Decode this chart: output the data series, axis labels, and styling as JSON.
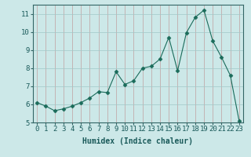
{
  "x": [
    0,
    1,
    2,
    3,
    4,
    5,
    6,
    7,
    8,
    9,
    10,
    11,
    12,
    13,
    14,
    15,
    16,
    17,
    18,
    19,
    20,
    21,
    22,
    23
  ],
  "y": [
    6.1,
    5.9,
    5.65,
    5.75,
    5.9,
    6.1,
    6.35,
    6.7,
    6.65,
    7.8,
    7.1,
    7.3,
    8.0,
    8.1,
    8.5,
    9.7,
    7.85,
    9.95,
    10.8,
    11.2,
    9.5,
    8.6,
    7.6,
    5.1
  ],
  "line_color": "#1a6b5a",
  "marker": "D",
  "marker_size": 2.5,
  "bg_color": "#cce8e8",
  "grid_color": "#b0cccc",
  "xlabel": "Humidex (Indice chaleur)",
  "xlim": [
    -0.5,
    23.5
  ],
  "ylim": [
    5.0,
    11.5
  ],
  "yticks": [
    5,
    6,
    7,
    8,
    9,
    10,
    11
  ],
  "xticks": [
    0,
    1,
    2,
    3,
    4,
    5,
    6,
    7,
    8,
    9,
    10,
    11,
    12,
    13,
    14,
    15,
    16,
    17,
    18,
    19,
    20,
    21,
    22,
    23
  ],
  "label_fontsize": 7,
  "tick_fontsize": 6.5
}
